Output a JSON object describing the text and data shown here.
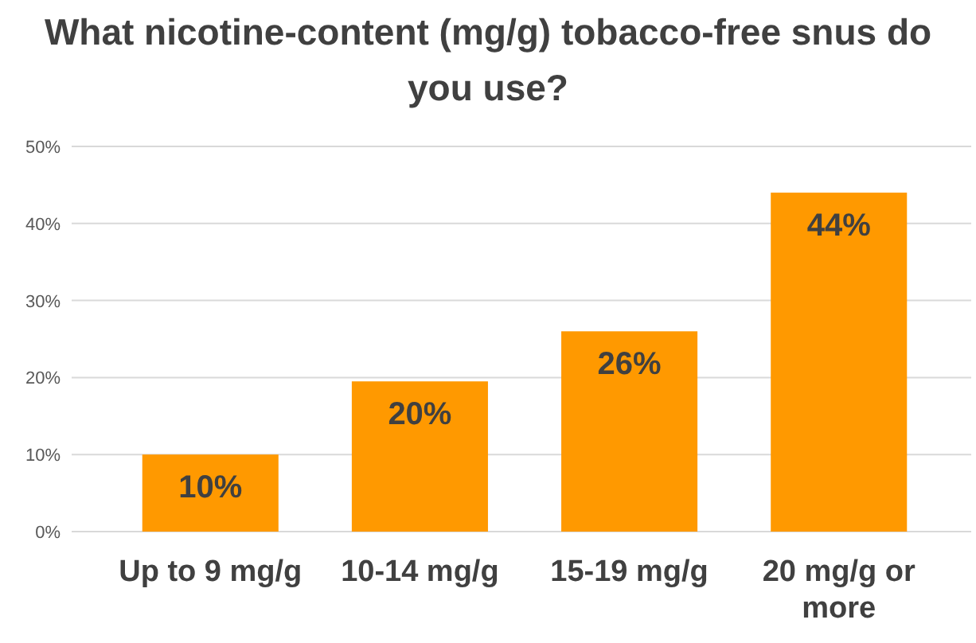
{
  "chart_data": {
    "type": "bar",
    "title": "What nicotine-content (mg/g) tobacco-free snus do you use?",
    "categories": [
      "Up to 9 mg/g",
      "10-14 mg/g",
      "15-19 mg/g",
      "20 mg/g or more"
    ],
    "values": [
      10,
      19.5,
      26,
      44
    ],
    "value_labels": [
      "10%",
      "20%",
      "26%",
      "44%"
    ],
    "color": "#ff9900",
    "ylim": [
      0,
      50
    ],
    "yticks": [
      {
        "value": 0,
        "label": "0%"
      },
      {
        "value": 10,
        "label": "10%"
      },
      {
        "value": 20,
        "label": "20%"
      },
      {
        "value": 30,
        "label": "30%"
      },
      {
        "value": 40,
        "label": "40%"
      },
      {
        "value": 50,
        "label": "50%"
      }
    ],
    "grid": "y"
  }
}
